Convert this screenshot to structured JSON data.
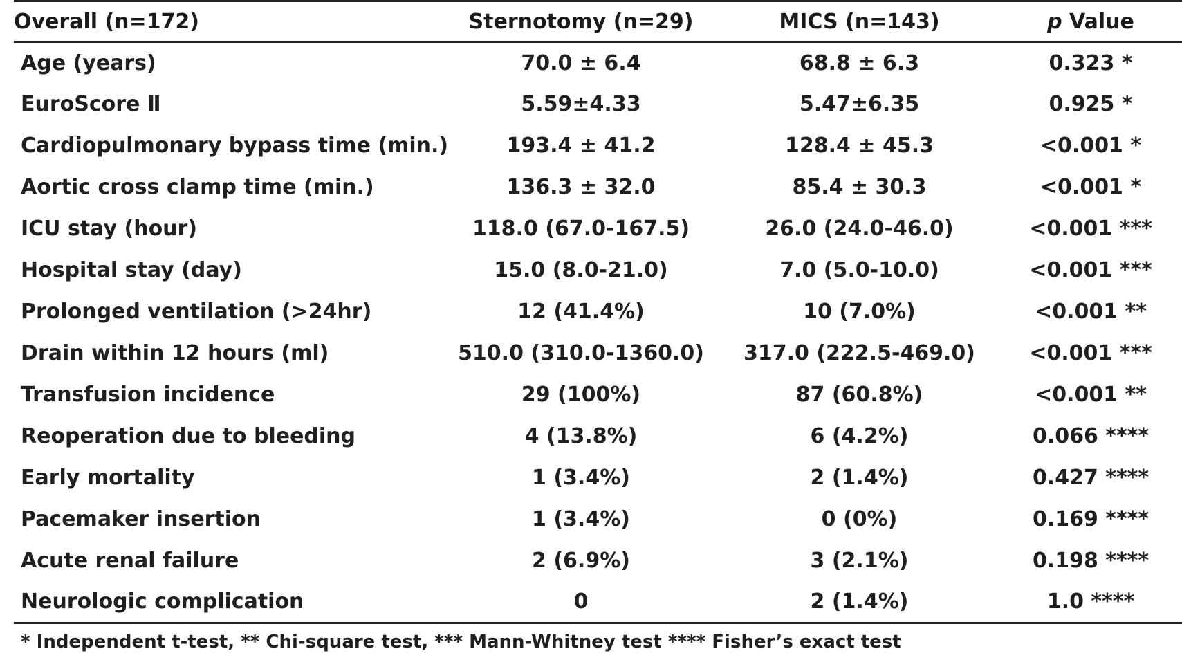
{
  "table": {
    "header": {
      "label": "Overall (n=172)",
      "sternotomy": "Sternotomy (n=29)",
      "mics": "MICS (n=143)",
      "p_italic": "p",
      "p_rest": " Value"
    },
    "rows": [
      {
        "label": "Age (years)",
        "sternotomy": "70.0 ± 6.4",
        "mics": "68.8 ± 6.3",
        "p": "0.323 *"
      },
      {
        "label": "EuroScore Ⅱ",
        "sternotomy": "5.59±4.33",
        "mics": "5.47±6.35",
        "p": "0.925 *"
      },
      {
        "label": "Cardiopulmonary bypass time (min.)",
        "sternotomy": "193.4 ± 41.2",
        "mics": "128.4 ± 45.3",
        "p": "<0.001 *"
      },
      {
        "label": "Aortic cross clamp time (min.)",
        "sternotomy": "136.3 ± 32.0",
        "mics": "85.4 ± 30.3",
        "p": "<0.001 *"
      },
      {
        "label": "ICU stay (hour)",
        "sternotomy": "118.0 (67.0-167.5)",
        "mics": "26.0 (24.0-46.0)",
        "p": "<0.001 ***"
      },
      {
        "label": "Hospital stay (day)",
        "sternotomy": "15.0 (8.0-21.0)",
        "mics": "7.0 (5.0-10.0)",
        "p": "<0.001 ***"
      },
      {
        "label": "Prolonged ventilation (>24hr)",
        "sternotomy": "12 (41.4%)",
        "mics": "10 (7.0%)",
        "p": "<0.001 **"
      },
      {
        "label": "Drain within 12 hours (ml)",
        "sternotomy": "510.0 (310.0-1360.0)",
        "mics": "317.0 (222.5-469.0)",
        "p": "<0.001 ***"
      },
      {
        "label": "Transfusion incidence",
        "sternotomy": "29 (100%)",
        "mics": "87 (60.8%)",
        "p": "<0.001 **"
      },
      {
        "label": "Reoperation due to bleeding",
        "sternotomy": "4 (13.8%)",
        "mics": "6 (4.2%)",
        "p": "0.066 ****"
      },
      {
        "label": "Early mortality",
        "sternotomy": "1 (3.4%)",
        "mics": "2 (1.4%)",
        "p": "0.427 ****"
      },
      {
        "label": "Pacemaker insertion",
        "sternotomy": "1 (3.4%)",
        "mics": "0 (0%)",
        "p": "0.169 ****"
      },
      {
        "label": "Acute renal failure",
        "sternotomy": "2 (6.9%)",
        "mics": "3 (2.1%)",
        "p": "0.198 ****"
      },
      {
        "label": "Neurologic complication",
        "sternotomy": "0",
        "mics": "2 (1.4%)",
        "p": "1.0 ****"
      }
    ]
  },
  "footnote": "* Independent t-test, ** Chi-square test, *** Mann-Whitney test **** Fisher’s exact test"
}
